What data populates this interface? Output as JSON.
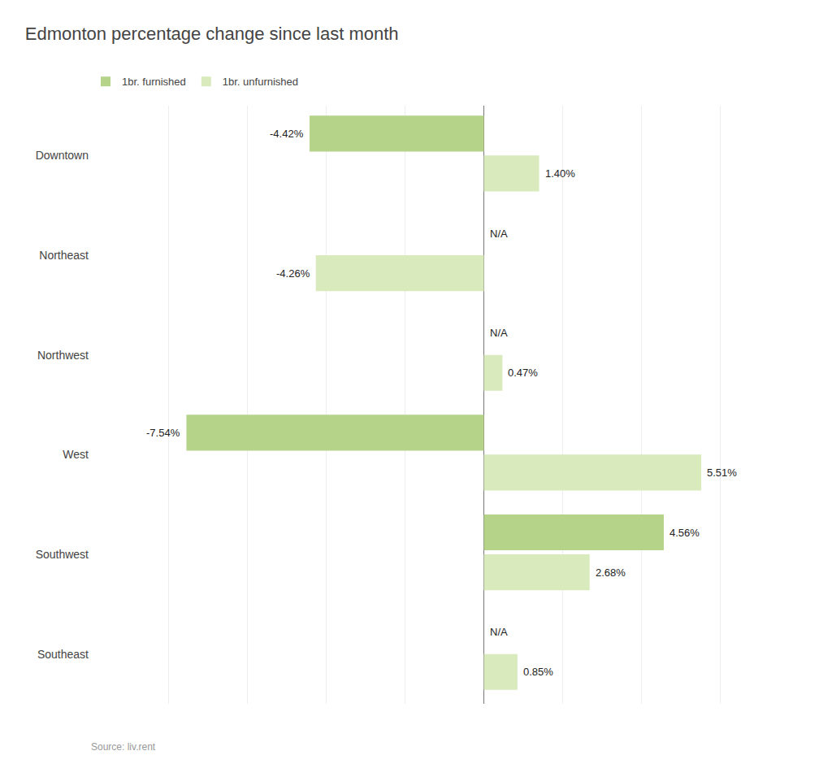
{
  "chart_data": {
    "type": "bar",
    "orientation": "horizontal",
    "title": "Edmonton percentage change since last month",
    "categories": [
      "Downtown",
      "Northeast",
      "Northwest",
      "West",
      "Southwest",
      "Southeast"
    ],
    "series": [
      {
        "name": "1br. furnished",
        "color": "#b5d48a",
        "values": [
          -4.42,
          null,
          null,
          -7.54,
          4.56,
          null
        ],
        "value_labels": [
          "-4.42%",
          "N/A",
          "N/A",
          "-7.54%",
          "4.56%",
          "N/A"
        ]
      },
      {
        "name": "1br. unfurnished",
        "color": "#d9eabc",
        "values": [
          1.4,
          -4.26,
          0.47,
          5.51,
          2.68,
          0.85
        ],
        "value_labels": [
          "1.40%",
          "-4.26%",
          "0.47%",
          "5.51%",
          "2.68%",
          "0.85%"
        ]
      }
    ],
    "xlim": [
      -10,
      8
    ],
    "xticks": [
      -10,
      -8,
      -6,
      -4,
      -2,
      0,
      2,
      4,
      6,
      8
    ],
    "grid": true,
    "legend": "upper left",
    "data_labels": true,
    "tick_labels": "y",
    "annotations": [
      "Source: liv.rent"
    ]
  }
}
